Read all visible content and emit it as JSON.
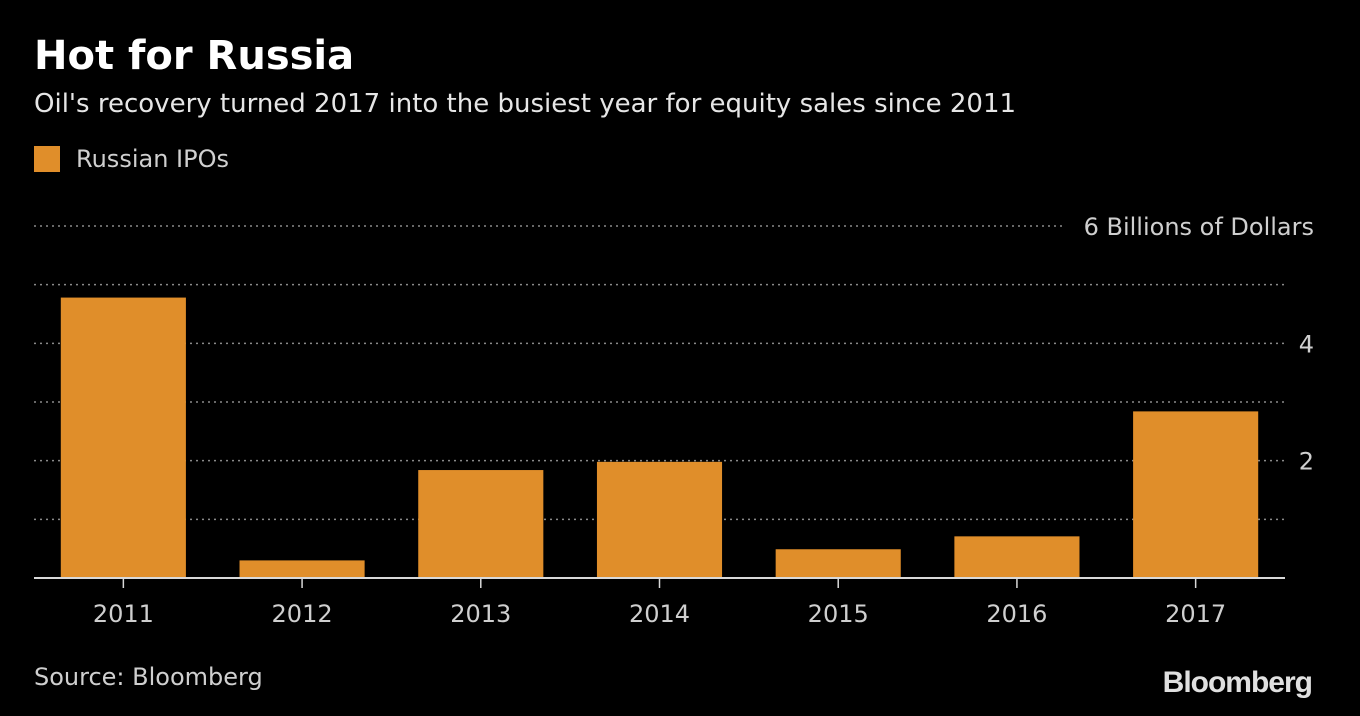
{
  "header": {
    "title": "Hot for Russia",
    "subtitle": "Oil's recovery turned 2017 into the busiest year for equity sales since 2011"
  },
  "legend": {
    "label": "Russian IPOs"
  },
  "footer": {
    "source": "Source: Bloomberg",
    "brand": "Bloomberg"
  },
  "colors": {
    "bar": "#e08e2a",
    "background": "#000000",
    "grid": "#8a8a8a",
    "axis": "#d9d9d9"
  },
  "chart_data": {
    "type": "bar",
    "title": "Hot for Russia",
    "subtitle": "Oil's recovery turned 2017 into the busiest year for equity sales since 2011",
    "categories": [
      "2011",
      "2012",
      "2013",
      "2014",
      "2015",
      "2016",
      "2017"
    ],
    "series": [
      {
        "name": "Russian IPOs",
        "values": [
          4.78,
          0.3,
          1.84,
          1.98,
          0.49,
          0.71,
          2.84
        ]
      }
    ],
    "xlabel": "",
    "ylabel": "Billions of Dollars",
    "ylim": [
      0,
      6
    ],
    "yticks": [
      {
        "value": 2,
        "label": "2"
      },
      {
        "value": 4,
        "label": "4"
      },
      {
        "value": 6,
        "label": "6 Billions of Dollars"
      }
    ],
    "grid": true,
    "grid_step": 1,
    "y_axis_side": "right",
    "legend_position": "top-left"
  }
}
